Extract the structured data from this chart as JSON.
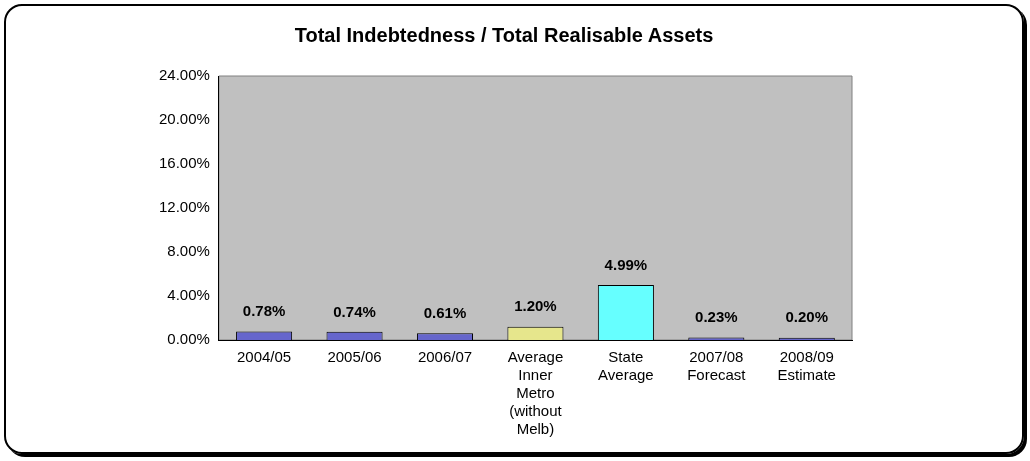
{
  "chart_data": {
    "type": "bar",
    "title": "Total Indebtedness / Total Realisable Assets",
    "categories": [
      "2004/05",
      "2005/06",
      "2006/07",
      "Average Inner Metro (without Melb)",
      "State Average",
      "2007/08 Forecast",
      "2008/09 Estimate"
    ],
    "values": [
      0.78,
      0.74,
      0.61,
      1.2,
      4.99,
      0.23,
      0.2
    ],
    "colors": [
      "#6666cc",
      "#6666cc",
      "#6666cc",
      "#e6e68c",
      "#66ffff",
      "#6666cc",
      "#6666cc"
    ],
    "value_labels": [
      "0.78%",
      "0.74%",
      "0.61%",
      "1.20%",
      "4.99%",
      "0.23%",
      "0.20%"
    ],
    "ylim": [
      0,
      24
    ],
    "yticks": [
      {
        "value": 0,
        "label": "0.00%"
      },
      {
        "value": 4,
        "label": "4.00%"
      },
      {
        "value": 8,
        "label": "8.00%"
      },
      {
        "value": 12,
        "label": "12.00%"
      },
      {
        "value": 16,
        "label": "16.00%"
      },
      {
        "value": 20,
        "label": "20.00%"
      },
      {
        "value": 24,
        "label": "24.00%"
      }
    ],
    "grid": false,
    "legend": false
  }
}
